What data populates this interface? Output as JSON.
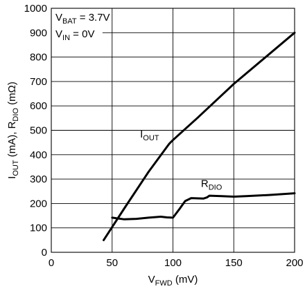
{
  "chart_data": {
    "type": "line",
    "title": "",
    "xlabel": {
      "main": "V",
      "sub": "FWD",
      "tail": " (mV)"
    },
    "ylabel": {
      "p1": "I",
      "s1": "OUT",
      "p2": " (mA), R",
      "s2": "DIO",
      "p3": " (mΩ)"
    },
    "xlim": [
      0,
      200
    ],
    "ylim": [
      0,
      1000
    ],
    "x_ticks": [
      0,
      50,
      100,
      150,
      200
    ],
    "y_ticks": [
      0,
      100,
      200,
      300,
      400,
      500,
      600,
      700,
      800,
      900,
      1000
    ],
    "grid": true,
    "conditions": [
      {
        "main": "V",
        "sub": "BAT",
        "tail": " = 3.7V"
      },
      {
        "main": "V",
        "sub": "IN",
        "tail": " = 0V"
      }
    ],
    "series": [
      {
        "name": "IOUT",
        "label": {
          "main": "I",
          "sub": "OUT"
        },
        "x": [
          43,
          60,
          80,
          97,
          100,
          120,
          150,
          200
        ],
        "y": [
          50,
          180,
          330,
          445,
          460,
          550,
          690,
          900
        ]
      },
      {
        "name": "RDIO",
        "label": {
          "main": "R",
          "sub": "DIO"
        },
        "x": [
          50,
          60,
          70,
          80,
          90,
          95,
          100,
          105,
          110,
          115,
          125,
          128,
          130,
          140,
          150,
          160,
          180,
          200
        ],
        "y": [
          142,
          135,
          137,
          142,
          146,
          143,
          142,
          175,
          210,
          222,
          220,
          225,
          232,
          230,
          228,
          230,
          235,
          242
        ]
      }
    ]
  }
}
